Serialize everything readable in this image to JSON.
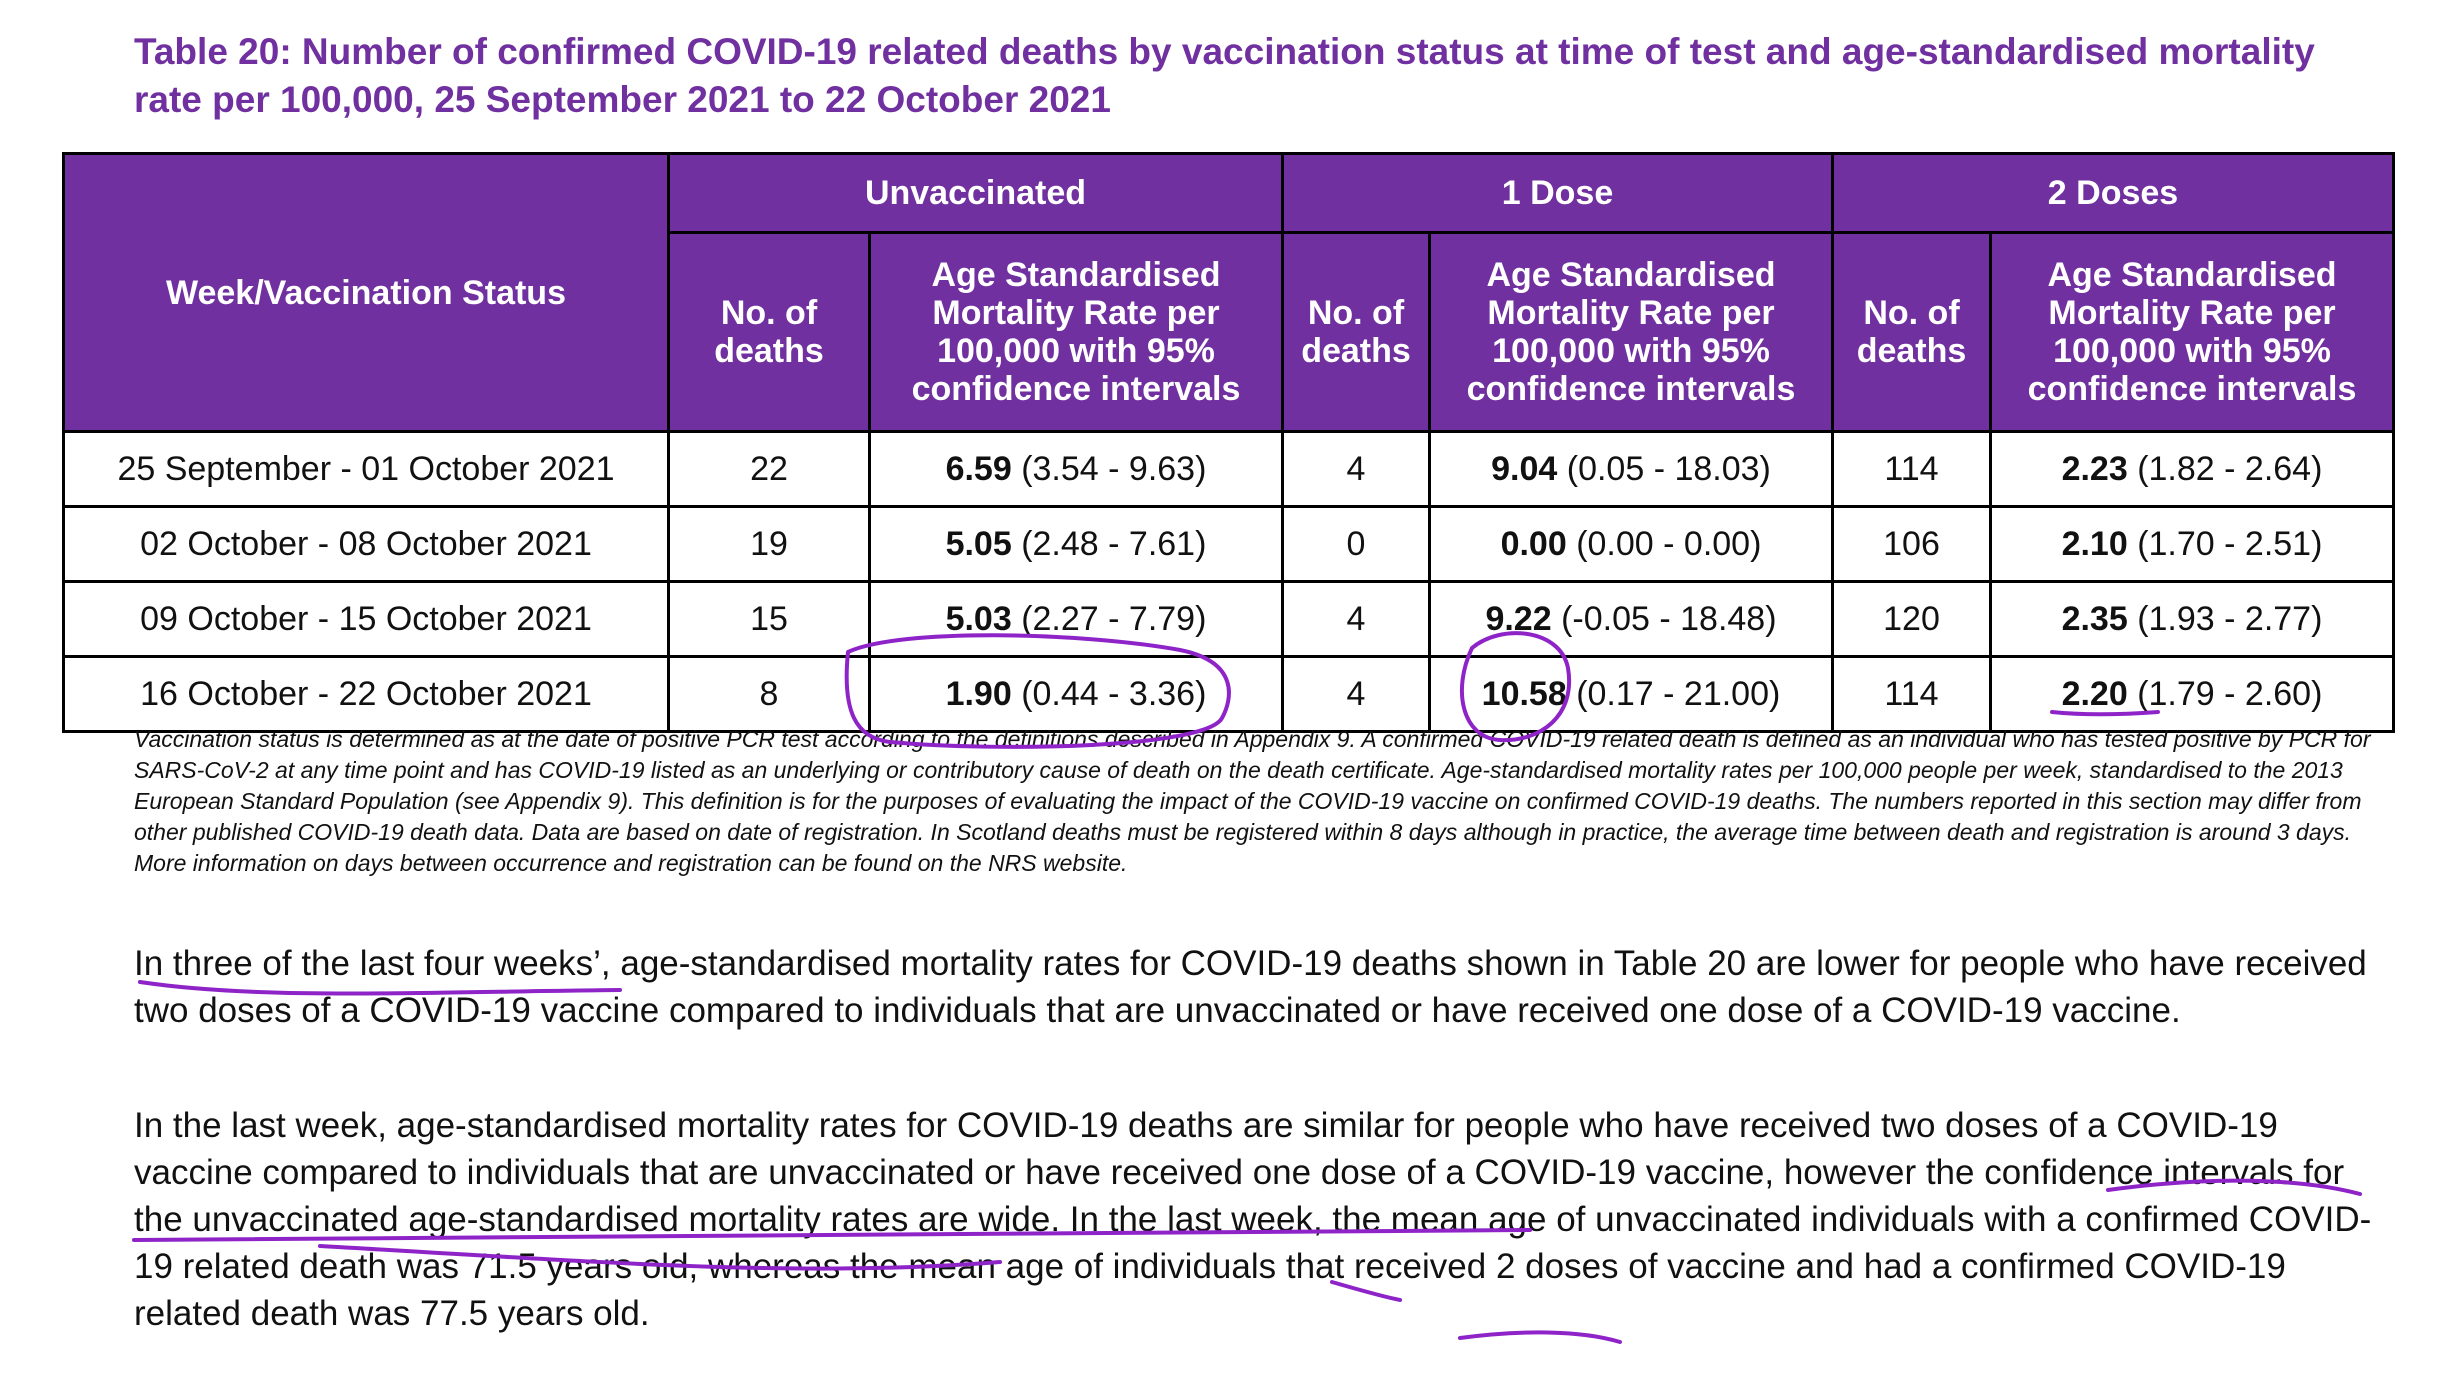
{
  "title": "Table 20: Number of confirmed COVID-19 related deaths by vaccination status at time of test and age-standardised mortality rate per 100,000, 25 September 2021 to 22 October 2021",
  "table": {
    "row_header": "Week/Vaccination Status",
    "groups": [
      "Unvaccinated",
      "1 Dose",
      "2 Doses"
    ],
    "sub_deaths": "No. of deaths",
    "sub_rate": "Age Standardised Mortality Rate per 100,000 with 95% confidence intervals",
    "rows": [
      {
        "week": "25 September - 01 October 2021",
        "unvax_deaths": "22",
        "unvax_rate": "6.59",
        "unvax_ci": "(3.54 - 9.63)",
        "d1_deaths": "4",
        "d1_rate": "9.04",
        "d1_ci": "(0.05 - 18.03)",
        "d2_deaths": "114",
        "d2_rate": "2.23",
        "d2_ci": "(1.82 - 2.64)"
      },
      {
        "week": "02 October - 08 October 2021",
        "unvax_deaths": "19",
        "unvax_rate": "5.05",
        "unvax_ci": "(2.48 - 7.61)",
        "d1_deaths": "0",
        "d1_rate": "0.00",
        "d1_ci": "(0.00 - 0.00)",
        "d2_deaths": "106",
        "d2_rate": "2.10",
        "d2_ci": "(1.70 - 2.51)"
      },
      {
        "week": "09 October - 15 October 2021",
        "unvax_deaths": "15",
        "unvax_rate": "5.03",
        "unvax_ci": "(2.27 - 7.79)",
        "d1_deaths": "4",
        "d1_rate": "9.22",
        "d1_ci": "(-0.05 - 18.48)",
        "d2_deaths": "120",
        "d2_rate": "2.35",
        "d2_ci": "(1.93 - 2.77)"
      },
      {
        "week": "16 October - 22 October 2021",
        "unvax_deaths": "8",
        "unvax_rate": "1.90",
        "unvax_ci": "(0.44 - 3.36)",
        "d1_deaths": "4",
        "d1_rate": "10.58",
        "d1_ci": "(0.17 - 21.00)",
        "d2_deaths": "114",
        "d2_rate": "2.20",
        "d2_ci": "(1.79 - 2.60)"
      }
    ]
  },
  "footnote": "Vaccination status is determined as at the date of positive PCR test according to the definitions described in Appendix 9. A confirmed COVID-19 related death is defined as an individual who has tested positive by PCR for SARS-CoV-2 at any time point and has COVID-19 listed as an underlying or contributory cause of death on the death certificate. Age-standardised mortality rates per 100,000 people per week, standardised to the 2013 European Standard Population (see Appendix 9). This definition is for the purposes of evaluating the impact of the COVID-19 vaccine on confirmed COVID-19 deaths. The numbers reported in this section may differ from other published COVID-19 death data. Data are based on date of registration. In Scotland deaths must be registered within 8 days although in practice, the average time between death and registration is around 3 days. More information on days between occurrence and registration can be found on the NRS website.",
  "paragraphs": [
    "In three of the last four weeks’, age-standardised mortality rates for COVID-19 deaths shown in Table 20 are lower for people who have received two doses of a COVID-19 vaccine compared to individuals that are unvaccinated or have received one dose of a COVID-19 vaccine.",
    "In the last week, age-standardised mortality rates for COVID-19 deaths are similar for people who have received two doses of a COVID-19 vaccine compared to individuals that are unvaccinated or have received one dose of a COVID-19 vaccine, however the confidence intervals for the unvaccinated age-standardised mortality rates are wide. In the last week, the mean age of unvaccinated individuals with a confirmed COVID-19 related death was 71.5 years old, whereas the mean age of individuals that received 2 doses of vaccine and had a confirmed COVID-19 related death was 77.5 years old."
  ],
  "colors": {
    "header_purple": "#7030a0",
    "annotation_ink": "#8e24c8"
  }
}
